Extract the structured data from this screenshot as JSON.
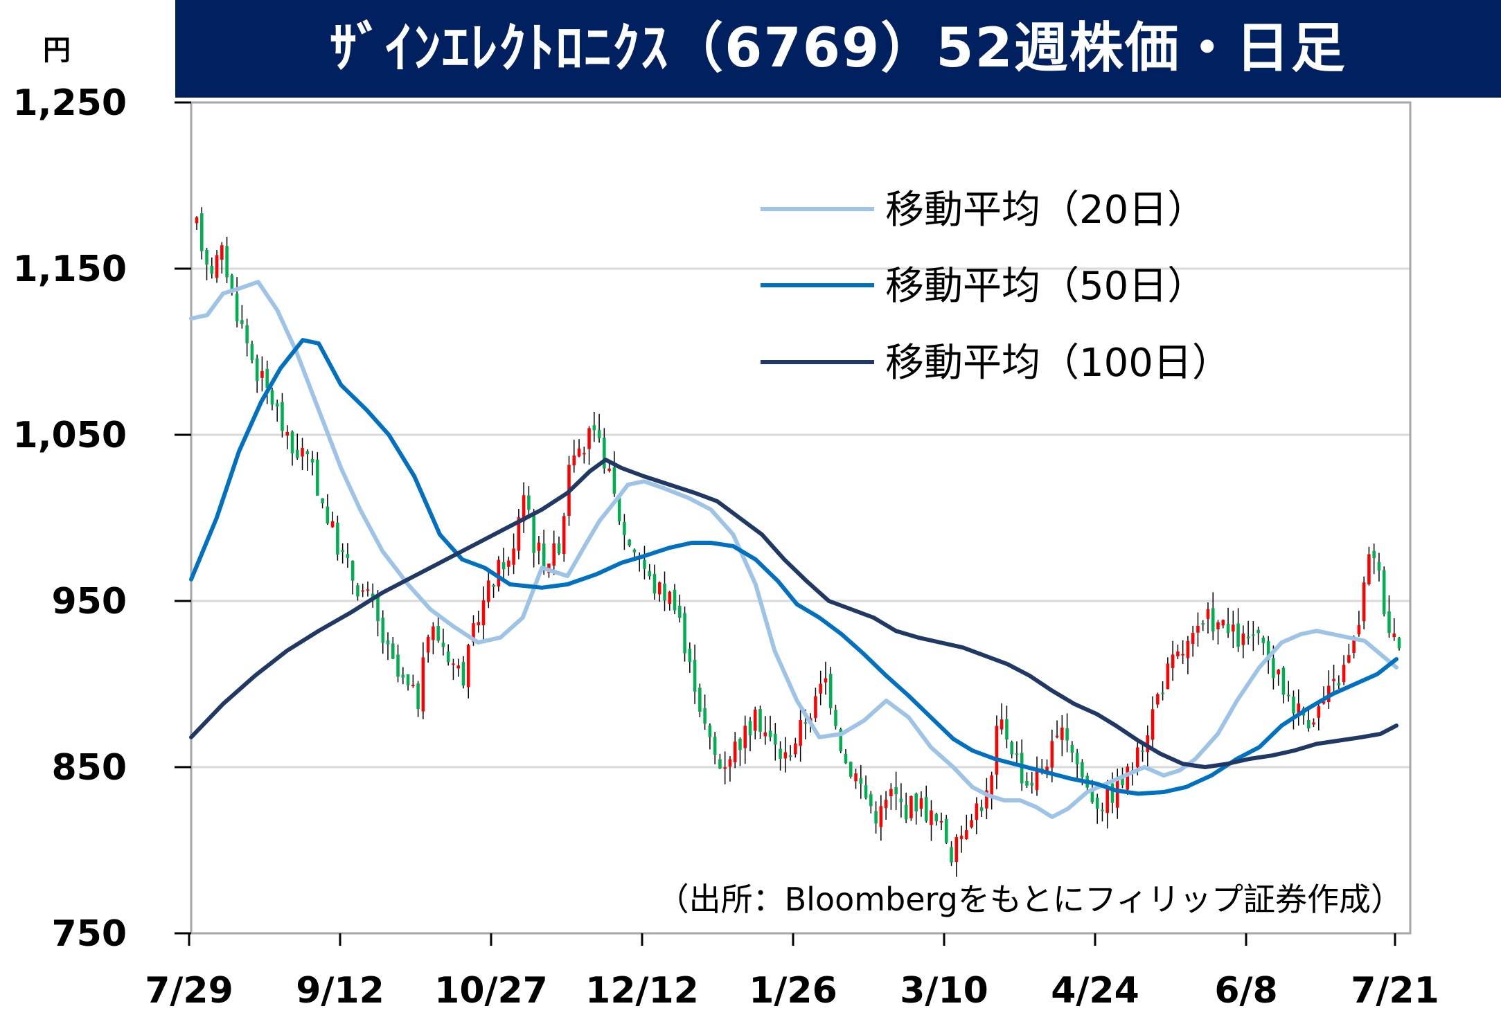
{
  "header": {
    "title": "ｻﾞｲﾝｴﾚｸﾄﾛﾆｸｽ（6769）52週株価・日足",
    "unit": "円"
  },
  "source_note": "（出所：Bloombergをもとにフィリップ証券作成）",
  "colors": {
    "title_bg": "#002060",
    "up_candle": "#ff0000",
    "down_candle": "#00b050",
    "ma20": "#9dc3e6",
    "ma50": "#0070c0",
    "ma100": "#203864",
    "grid": "#d9d9d9"
  },
  "chart_data": {
    "type": "candlestick",
    "y_ticks": [
      "1,250",
      "1,150",
      "1,050",
      "950",
      "850",
      "750"
    ],
    "y_tick_values": [
      1250,
      1150,
      1050,
      950,
      850,
      750
    ],
    "ylim": [
      750,
      1250
    ],
    "x_ticks": [
      "7/29",
      "9/12",
      "10/27",
      "12/12",
      "1/26",
      "3/10",
      "4/24",
      "6/8",
      "7/21"
    ],
    "n_days": 240,
    "grid": true,
    "legend_position": "top-right",
    "series": [
      {
        "name": "移動平均（20日）",
        "color": "#9dc3e6",
        "values": [
          [
            0,
            1120
          ],
          [
            5,
            1122
          ],
          [
            10,
            1135
          ],
          [
            15,
            1138
          ],
          [
            21,
            1142
          ],
          [
            27,
            1125
          ],
          [
            33,
            1100
          ],
          [
            40,
            1065
          ],
          [
            47,
            1030
          ],
          [
            53,
            1005
          ],
          [
            60,
            980
          ],
          [
            68,
            960
          ],
          [
            75,
            945
          ],
          [
            82,
            935
          ],
          [
            90,
            925
          ],
          [
            97,
            928
          ],
          [
            104,
            940
          ],
          [
            110,
            970
          ],
          [
            118,
            965
          ],
          [
            124,
            985
          ],
          [
            128,
            998
          ],
          [
            133,
            1010
          ],
          [
            137,
            1020
          ],
          [
            142,
            1022
          ],
          [
            148,
            1018
          ],
          [
            156,
            1012
          ],
          [
            163,
            1005
          ],
          [
            170,
            990
          ],
          [
            177,
            960
          ],
          [
            183,
            920
          ],
          [
            190,
            890
          ],
          [
            197,
            868
          ],
          [
            204,
            870
          ],
          [
            211,
            878
          ],
          [
            218,
            890
          ],
          [
            225,
            880
          ],
          [
            232,
            862
          ],
          [
            239,
            850
          ],
          [
            245,
            838
          ],
          [
            250,
            833
          ],
          [
            255,
            830
          ],
          [
            260,
            830
          ],
          [
            265,
            826
          ],
          [
            270,
            820
          ],
          [
            275,
            825
          ],
          [
            281,
            835
          ],
          [
            287,
            840
          ],
          [
            293,
            845
          ],
          [
            299,
            850
          ],
          [
            305,
            845
          ],
          [
            310,
            848
          ],
          [
            315,
            855
          ],
          [
            322,
            870
          ],
          [
            328,
            890
          ],
          [
            335,
            910
          ],
          [
            342,
            925
          ],
          [
            348,
            930
          ],
          [
            353,
            932
          ],
          [
            358,
            930
          ],
          [
            363,
            928
          ],
          [
            368,
            926
          ],
          [
            373,
            918
          ],
          [
            378,
            910
          ]
        ]
      },
      {
        "name": "移動平均（50日）",
        "color": "#0070c0",
        "values": [
          [
            0,
            963
          ],
          [
            8,
            1000
          ],
          [
            15,
            1040
          ],
          [
            22,
            1070
          ],
          [
            28,
            1090
          ],
          [
            35,
            1107
          ],
          [
            40,
            1105
          ],
          [
            47,
            1080
          ],
          [
            55,
            1065
          ],
          [
            62,
            1050
          ],
          [
            70,
            1025
          ],
          [
            78,
            990
          ],
          [
            85,
            975
          ],
          [
            92,
            970
          ],
          [
            100,
            960
          ],
          [
            110,
            958
          ],
          [
            118,
            960
          ],
          [
            127,
            966
          ],
          [
            135,
            973
          ],
          [
            142,
            977
          ],
          [
            150,
            982
          ],
          [
            157,
            985
          ],
          [
            163,
            985
          ],
          [
            170,
            983
          ],
          [
            177,
            975
          ],
          [
            184,
            962
          ],
          [
            190,
            948
          ],
          [
            197,
            940
          ],
          [
            204,
            930
          ],
          [
            211,
            918
          ],
          [
            218,
            905
          ],
          [
            225,
            893
          ],
          [
            232,
            880
          ],
          [
            239,
            867
          ],
          [
            245,
            860
          ],
          [
            252,
            855
          ],
          [
            260,
            851
          ],
          [
            268,
            847
          ],
          [
            276,
            843
          ],
          [
            284,
            840
          ],
          [
            290,
            836
          ],
          [
            297,
            834
          ],
          [
            305,
            835
          ],
          [
            312,
            838
          ],
          [
            320,
            845
          ],
          [
            328,
            855
          ],
          [
            335,
            862
          ],
          [
            342,
            875
          ],
          [
            350,
            885
          ],
          [
            358,
            894
          ],
          [
            365,
            900
          ],
          [
            372,
            906
          ],
          [
            378,
            915
          ]
        ]
      },
      {
        "name": "移動平均（100日）",
        "color": "#203864",
        "values": [
          [
            0,
            868
          ],
          [
            10,
            888
          ],
          [
            20,
            905
          ],
          [
            30,
            920
          ],
          [
            40,
            932
          ],
          [
            50,
            943
          ],
          [
            60,
            955
          ],
          [
            70,
            965
          ],
          [
            80,
            975
          ],
          [
            90,
            985
          ],
          [
            100,
            995
          ],
          [
            110,
            1005
          ],
          [
            118,
            1015
          ],
          [
            125,
            1028
          ],
          [
            130,
            1035
          ],
          [
            135,
            1030
          ],
          [
            142,
            1025
          ],
          [
            150,
            1020
          ],
          [
            158,
            1015
          ],
          [
            165,
            1010
          ],
          [
            172,
            1000
          ],
          [
            179,
            990
          ],
          [
            186,
            975
          ],
          [
            193,
            962
          ],
          [
            200,
            950
          ],
          [
            207,
            945
          ],
          [
            214,
            940
          ],
          [
            221,
            932
          ],
          [
            228,
            928
          ],
          [
            235,
            925
          ],
          [
            242,
            922
          ],
          [
            249,
            917
          ],
          [
            256,
            912
          ],
          [
            263,
            905
          ],
          [
            270,
            896
          ],
          [
            277,
            888
          ],
          [
            284,
            882
          ],
          [
            290,
            875
          ],
          [
            297,
            866
          ],
          [
            304,
            858
          ],
          [
            311,
            852
          ],
          [
            318,
            850
          ],
          [
            325,
            852
          ],
          [
            332,
            855
          ],
          [
            339,
            857
          ],
          [
            346,
            860
          ],
          [
            353,
            864
          ],
          [
            360,
            866
          ],
          [
            367,
            868
          ],
          [
            373,
            870
          ],
          [
            378,
            875
          ]
        ]
      }
    ],
    "candles_note": "daily OHLC, 7/29 to 7/21",
    "price_path": [
      [
        0,
        1175
      ],
      [
        5,
        1150
      ],
      [
        10,
        1160
      ],
      [
        13,
        1135
      ],
      [
        17,
        1115
      ],
      [
        22,
        1090
      ],
      [
        27,
        1075
      ],
      [
        30,
        1065
      ],
      [
        35,
        1040
      ],
      [
        40,
        1040
      ],
      [
        45,
        1020
      ],
      [
        50,
        995
      ],
      [
        55,
        975
      ],
      [
        60,
        960
      ],
      [
        65,
        950
      ],
      [
        70,
        925
      ],
      [
        75,
        905
      ],
      [
        80,
        895
      ],
      [
        83,
        890
      ],
      [
        87,
        935
      ],
      [
        92,
        925
      ],
      [
        97,
        910
      ],
      [
        100,
        905
      ],
      [
        105,
        940
      ],
      [
        110,
        960
      ],
      [
        115,
        975
      ],
      [
        118,
        970
      ],
      [
        120,
        1000
      ],
      [
        123,
        1020
      ],
      [
        126,
        985
      ],
      [
        130,
        975
      ],
      [
        135,
        980
      ],
      [
        138,
        1010
      ],
      [
        140,
        1050
      ],
      [
        143,
        1035
      ],
      [
        147,
        1050
      ],
      [
        152,
        1040
      ],
      [
        155,
        1020
      ],
      [
        160,
        990
      ],
      [
        165,
        980
      ],
      [
        170,
        960
      ],
      [
        175,
        955
      ],
      [
        180,
        950
      ],
      [
        183,
        915
      ],
      [
        186,
        905
      ],
      [
        190,
        875
      ],
      [
        193,
        860
      ],
      [
        196,
        850
      ],
      [
        200,
        860
      ],
      [
        205,
        870
      ],
      [
        210,
        880
      ],
      [
        215,
        865
      ],
      [
        220,
        855
      ],
      [
        225,
        870
      ],
      [
        228,
        880
      ],
      [
        232,
        890
      ],
      [
        235,
        905
      ],
      [
        240,
        875
      ],
      [
        242,
        855
      ],
      [
        247,
        845
      ],
      [
        251,
        830
      ],
      [
        255,
        820
      ],
      [
        260,
        835
      ],
      [
        265,
        825
      ],
      [
        270,
        830
      ],
      [
        275,
        820
      ],
      [
        280,
        810
      ],
      [
        283,
        795
      ],
      [
        286,
        810
      ],
      [
        290,
        825
      ],
      [
        295,
        830
      ],
      [
        298,
        845
      ],
      [
        300,
        880
      ],
      [
        303,
        870
      ],
      [
        306,
        860
      ],
      [
        310,
        840
      ],
      [
        315,
        845
      ],
      [
        318,
        855
      ],
      [
        322,
        865
      ],
      [
        326,
        870
      ],
      [
        330,
        850
      ],
      [
        334,
        835
      ],
      [
        338,
        828
      ],
      [
        343,
        835
      ],
      [
        348,
        845
      ],
      [
        352,
        855
      ],
      [
        356,
        875
      ],
      [
        360,
        895
      ],
      [
        364,
        910
      ],
      [
        368,
        918
      ],
      [
        372,
        925
      ],
      [
        376,
        932
      ],
      [
        379,
        940
      ],
      [
        383,
        935
      ],
      [
        387,
        930
      ],
      [
        392,
        925
      ],
      [
        396,
        930
      ],
      [
        400,
        915
      ],
      [
        404,
        905
      ],
      [
        408,
        895
      ],
      [
        412,
        885
      ],
      [
        416,
        880
      ],
      [
        420,
        885
      ],
      [
        424,
        895
      ],
      [
        428,
        905
      ],
      [
        431,
        915
      ],
      [
        434,
        930
      ],
      [
        437,
        960
      ],
      [
        440,
        985
      ],
      [
        443,
        960
      ],
      [
        446,
        935
      ],
      [
        450,
        927
      ]
    ]
  }
}
